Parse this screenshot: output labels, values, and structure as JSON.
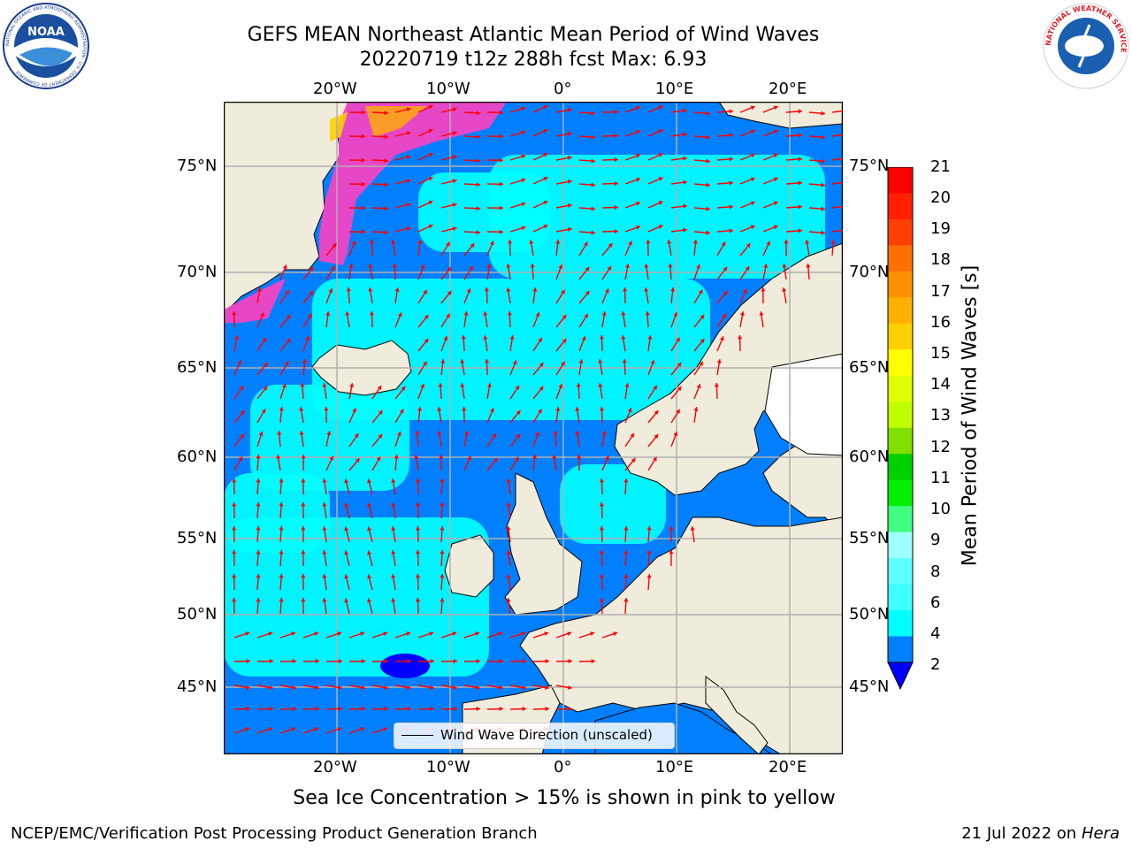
{
  "title": {
    "line1": "GEFS MEAN Northeast Atlantic Mean Period of Wind Waves",
    "line2": "20220719 t12z 288h fcst   Max: 6.93"
  },
  "logos": {
    "left_name": "NOAA",
    "left_ring_text": "NATIONAL OCEANIC AND ATMOSPHERIC ADMINISTRATION · U.S. DEPARTMENT OF COMMERCE",
    "right_ring_text": "NATIONAL WEATHER SERVICE"
  },
  "map": {
    "lon_ticks": [
      "20°W",
      "10°W",
      "0°",
      "10°E",
      "20°E"
    ],
    "lat_ticks": [
      "75°N",
      "70°N",
      "65°N",
      "60°N",
      "55°N",
      "50°N",
      "45°N"
    ],
    "legend_label": "Wind Wave Direction (unscaled)",
    "colors": {
      "ocean_low": "#0080ff",
      "ocean_mid": "#00ffff",
      "land": "#efecdc",
      "arrow": "#ff0000",
      "ice": "#ff40c0",
      "deep": "#0000ff"
    }
  },
  "colorbar": {
    "label": "Mean Period of Wind Waves [s]",
    "ticks": [
      "21",
      "20",
      "19",
      "18",
      "17",
      "16",
      "15",
      "14",
      "13",
      "12",
      "11",
      "10",
      "9",
      "8",
      "6",
      "4",
      "2"
    ],
    "colors": [
      "#ff0000",
      "#ff2000",
      "#ff4000",
      "#ff7000",
      "#ff9000",
      "#ffb000",
      "#ffd000",
      "#ffff00",
      "#e0ff00",
      "#c0ff00",
      "#80e000",
      "#00d000",
      "#00f000",
      "#40ff80",
      "#a0ffff",
      "#60ffff",
      "#40ffff",
      "#00ffff",
      "#0080ff"
    ]
  },
  "note": "Sea Ice Concentration > 15% is shown in pink to yellow",
  "footer": {
    "left": "NCEP/EMC/Verification Post Processing Product Generation Branch",
    "right_date": "21 Jul 2022 on ",
    "right_host": "Hera"
  }
}
